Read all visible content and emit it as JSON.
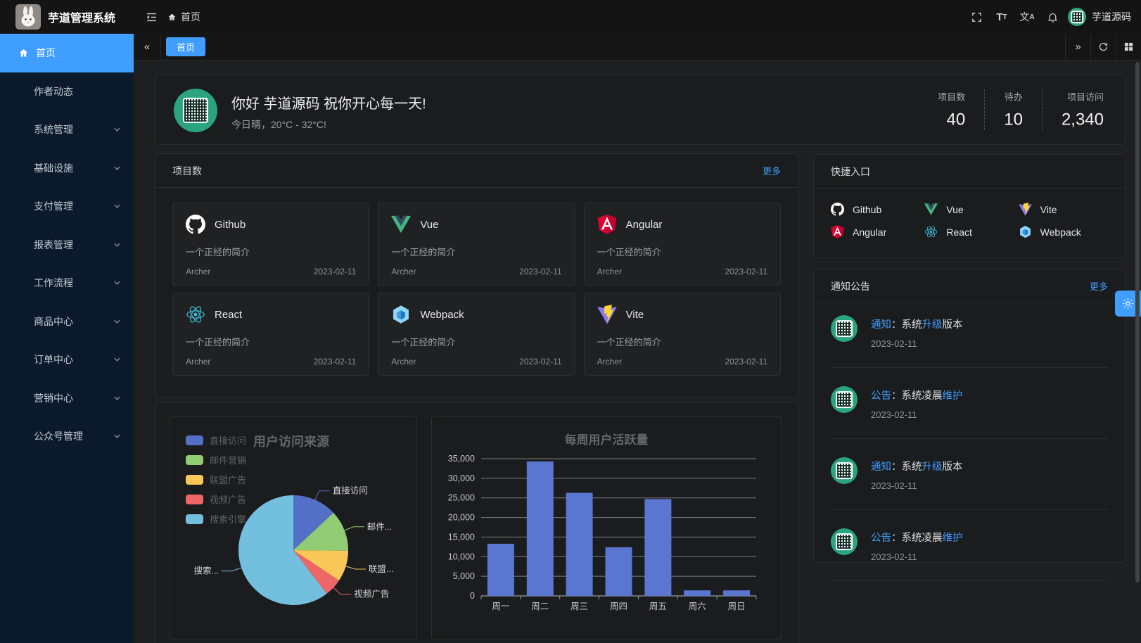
{
  "app": {
    "title": "芋道管理系统",
    "user_name": "芋道源码"
  },
  "header": {
    "breadcrumb": "首页",
    "icons": [
      "fold-icon",
      "fullscreen-icon",
      "font-size-icon",
      "locale-icon",
      "bell-icon"
    ]
  },
  "sidebar": {
    "items": [
      {
        "label": "首页",
        "active": true,
        "icon": "home-icon"
      },
      {
        "label": "作者动态"
      },
      {
        "label": "系统管理",
        "expandable": true
      },
      {
        "label": "基础设施",
        "expandable": true
      },
      {
        "label": "支付管理",
        "expandable": true
      },
      {
        "label": "报表管理",
        "expandable": true
      },
      {
        "label": "工作流程",
        "expandable": true
      },
      {
        "label": "商品中心",
        "expandable": true
      },
      {
        "label": "订单中心",
        "expandable": true
      },
      {
        "label": "营销中心",
        "expandable": true
      },
      {
        "label": "公众号管理",
        "expandable": true
      }
    ]
  },
  "tabs": {
    "items": [
      {
        "label": "首页",
        "active": true
      }
    ]
  },
  "greeting": {
    "title": "你好 芋道源码 祝你开心每一天!",
    "subtitle": "今日晴，20°C - 32°C!"
  },
  "stats": [
    {
      "label": "项目数",
      "value": "40"
    },
    {
      "label": "待办",
      "value": "10"
    },
    {
      "label": "项目访问",
      "value": "2,340"
    }
  ],
  "projects": {
    "title": "项目数",
    "more_label": "更多",
    "items": [
      {
        "name": "Github",
        "icon": "github-icon",
        "desc": "一个正经的简介",
        "author": "Archer",
        "date": "2023-02-11"
      },
      {
        "name": "Vue",
        "icon": "vue-icon",
        "desc": "一个正经的简介",
        "author": "Archer",
        "date": "2023-02-11"
      },
      {
        "name": "Angular",
        "icon": "angular-icon",
        "desc": "一个正经的简介",
        "author": "Archer",
        "date": "2023-02-11"
      },
      {
        "name": "React",
        "icon": "react-icon",
        "desc": "一个正经的简介",
        "author": "Archer",
        "date": "2023-02-11"
      },
      {
        "name": "Webpack",
        "icon": "webpack-icon",
        "desc": "一个正经的简介",
        "author": "Archer",
        "date": "2023-02-11"
      },
      {
        "name": "Vite",
        "icon": "vite-icon",
        "desc": "一个正经的简介",
        "author": "Archer",
        "date": "2023-02-11"
      }
    ]
  },
  "shortcuts": {
    "title": "快捷入口",
    "items": [
      {
        "name": "Github",
        "icon": "github-icon"
      },
      {
        "name": "Vue",
        "icon": "vue-icon"
      },
      {
        "name": "Vite",
        "icon": "vite-icon"
      },
      {
        "name": "Angular",
        "icon": "angular-icon"
      },
      {
        "name": "React",
        "icon": "react-icon"
      },
      {
        "name": "Webpack",
        "icon": "webpack-icon"
      }
    ]
  },
  "notices": {
    "title": "通知公告",
    "more_label": "更多",
    "items": [
      {
        "tag": "通知",
        "mid": "：系统",
        "hl": "升级",
        "tail": "版本",
        "date": "2023-02-11"
      },
      {
        "tag": "公告",
        "mid": "：系统凌晨",
        "hl": "维护",
        "tail": "",
        "date": "2023-02-11"
      },
      {
        "tag": "通知",
        "mid": "：系统",
        "hl": "升级",
        "tail": "版本",
        "date": "2023-02-11"
      },
      {
        "tag": "公告",
        "mid": "：系统凌晨",
        "hl": "维护",
        "tail": "",
        "date": "2023-02-11"
      }
    ]
  },
  "chart_data": [
    {
      "type": "pie",
      "title": "用户访问来源",
      "legend_position": "top-left",
      "legend": [
        "直接访问",
        "邮件营销",
        "联盟广告",
        "视频广告",
        "搜索引擎"
      ],
      "series": [
        {
          "name": "直接访问",
          "value": 335
        },
        {
          "name": "邮件营销",
          "value": 310
        },
        {
          "name": "联盟广告",
          "value": 234
        },
        {
          "name": "视频广告",
          "value": 135
        },
        {
          "name": "搜索引擎",
          "value": 1548
        }
      ],
      "labels_displayed": [
        "直接访问",
        "邮件...",
        "联盟...",
        "视频广告",
        "搜索..."
      ],
      "colors": [
        "#5470c6",
        "#91cc75",
        "#fac858",
        "#ee6666",
        "#73c0de"
      ]
    },
    {
      "type": "bar",
      "title": "每周用户活跃量",
      "categories": [
        "周一",
        "周二",
        "周三",
        "周四",
        "周五",
        "周六",
        "周日"
      ],
      "values": [
        13300,
        34300,
        26300,
        12400,
        24700,
        1400,
        1400
      ],
      "ylim": [
        0,
        35000
      ],
      "ytick_step": 5000,
      "grid": true,
      "bar_color": "#5b76d0"
    }
  ],
  "colors": {
    "accent": "#409eff",
    "link": "#409eff",
    "sidebar_bg": "#0a1a2c",
    "panel_bg": "#1b1c1d",
    "content_bg": "#1e1f20",
    "avatar_green": "#2aa47e"
  }
}
